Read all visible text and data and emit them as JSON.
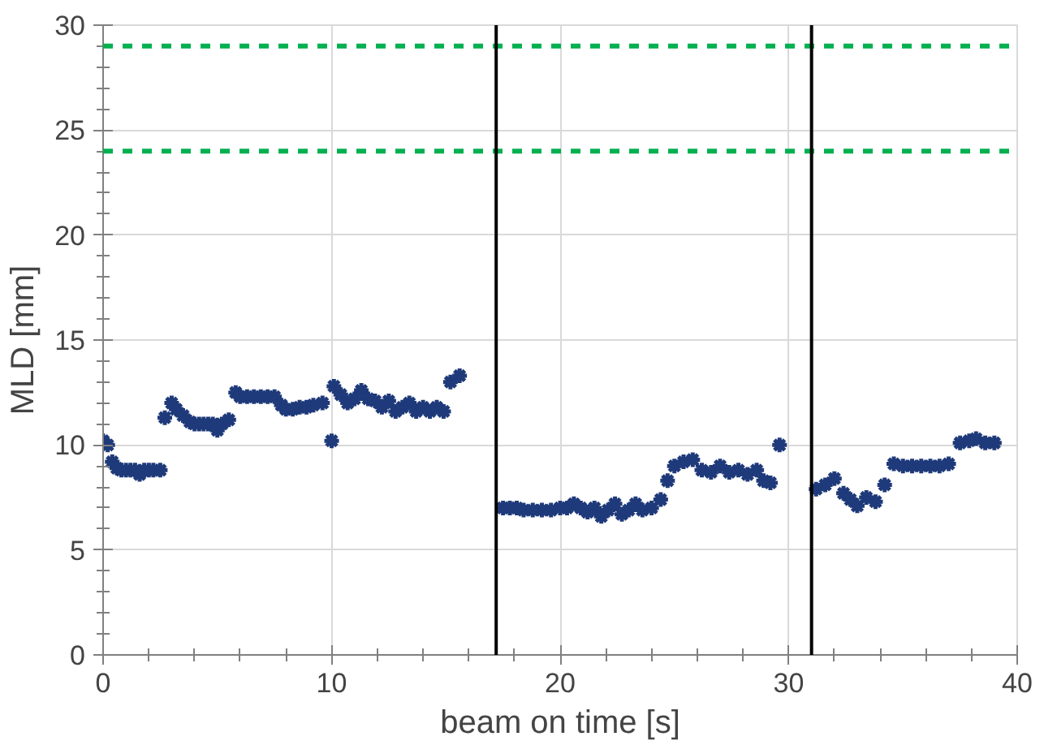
{
  "chart_data": {
    "type": "scatter",
    "xlabel": "beam on time [s]",
    "ylabel": "MLD [mm]",
    "xlim": [
      0,
      40
    ],
    "ylim": [
      0,
      30
    ],
    "xticks": [
      0,
      10,
      20,
      30,
      40
    ],
    "yticks": [
      0,
      5,
      10,
      15,
      20,
      25,
      30
    ],
    "grid": true,
    "marker": "cross",
    "series": [
      {
        "color": "#1f3a7a",
        "x": [
          0,
          0.2,
          0.4,
          0.6,
          0.8,
          1.0,
          1.2,
          1.4,
          1.6,
          1.8,
          2.0,
          2.2,
          2.5,
          2.7,
          3.0,
          3.2,
          3.5,
          3.8,
          4.0,
          4.2,
          4.4,
          4.6,
          4.8,
          5.0,
          5.2,
          5.5,
          5.8,
          6.0,
          6.3,
          6.6,
          6.9,
          7.2,
          7.5,
          7.8,
          8.0,
          8.3,
          8.6,
          8.9,
          9.2,
          9.6,
          10.0,
          10.1,
          10.4,
          10.7,
          11.0,
          11.3,
          11.6,
          11.9,
          12.2,
          12.5,
          12.8,
          13.1,
          13.4,
          13.7,
          14.0,
          14.3,
          14.6,
          14.9,
          15.2,
          15.6,
          17.5,
          17.8,
          18.1,
          18.4,
          18.8,
          19.2,
          19.6,
          20.0,
          20.3,
          20.6,
          20.9,
          21.2,
          21.5,
          21.8,
          22.1,
          22.4,
          22.7,
          23.0,
          23.3,
          23.6,
          24.0,
          24.4,
          24.7,
          25.0,
          25.4,
          25.8,
          26.2,
          26.6,
          27.0,
          27.4,
          27.8,
          28.2,
          28.6,
          28.9,
          29.2,
          29.6,
          31.2,
          31.6,
          32.0,
          32.4,
          32.7,
          33.0,
          33.4,
          33.8,
          34.2,
          34.6,
          35.0,
          35.4,
          35.8,
          36.2,
          36.6,
          37.0,
          37.5,
          37.9,
          38.2,
          38.6,
          39.0
        ],
        "values": [
          10.2,
          10.0,
          9.2,
          8.9,
          8.8,
          8.8,
          8.8,
          8.8,
          8.6,
          8.8,
          8.8,
          8.8,
          8.8,
          11.3,
          12.0,
          11.7,
          11.4,
          11.1,
          11.0,
          11.0,
          11.0,
          11.0,
          11.0,
          10.7,
          11.0,
          11.2,
          12.5,
          12.3,
          12.3,
          12.3,
          12.3,
          12.3,
          12.3,
          11.9,
          11.7,
          11.7,
          11.8,
          11.8,
          11.9,
          12.0,
          10.2,
          12.8,
          12.4,
          12.0,
          12.2,
          12.6,
          12.2,
          12.1,
          11.8,
          12.1,
          11.6,
          11.8,
          12.0,
          11.6,
          11.8,
          11.6,
          11.8,
          11.6,
          13.0,
          13.3,
          7.0,
          7.0,
          7.0,
          6.9,
          6.9,
          6.9,
          6.9,
          7.0,
          7.0,
          7.2,
          7.0,
          6.8,
          7.0,
          6.6,
          6.9,
          7.2,
          6.7,
          6.9,
          7.2,
          6.9,
          7.0,
          7.4,
          8.3,
          9.0,
          9.2,
          9.3,
          8.8,
          8.7,
          9.0,
          8.7,
          8.8,
          8.6,
          8.8,
          8.3,
          8.2,
          10.0,
          7.9,
          8.1,
          8.4,
          7.7,
          7.4,
          7.1,
          7.5,
          7.3,
          8.1,
          9.1,
          9.0,
          9.0,
          9.0,
          9.0,
          9.0,
          9.1,
          10.1,
          10.2,
          10.3,
          10.1,
          10.1
        ]
      }
    ],
    "ref_lines": [
      {
        "axis": "y",
        "value": 29,
        "color": "#00b050",
        "line_style": "dashed"
      },
      {
        "axis": "y",
        "value": 24,
        "color": "#00b050",
        "line_style": "dashed"
      },
      {
        "axis": "x",
        "value": 17.2,
        "color": "#000000",
        "line_style": "solid"
      },
      {
        "axis": "x",
        "value": 31.0,
        "color": "#000000",
        "line_style": "solid"
      }
    ]
  }
}
